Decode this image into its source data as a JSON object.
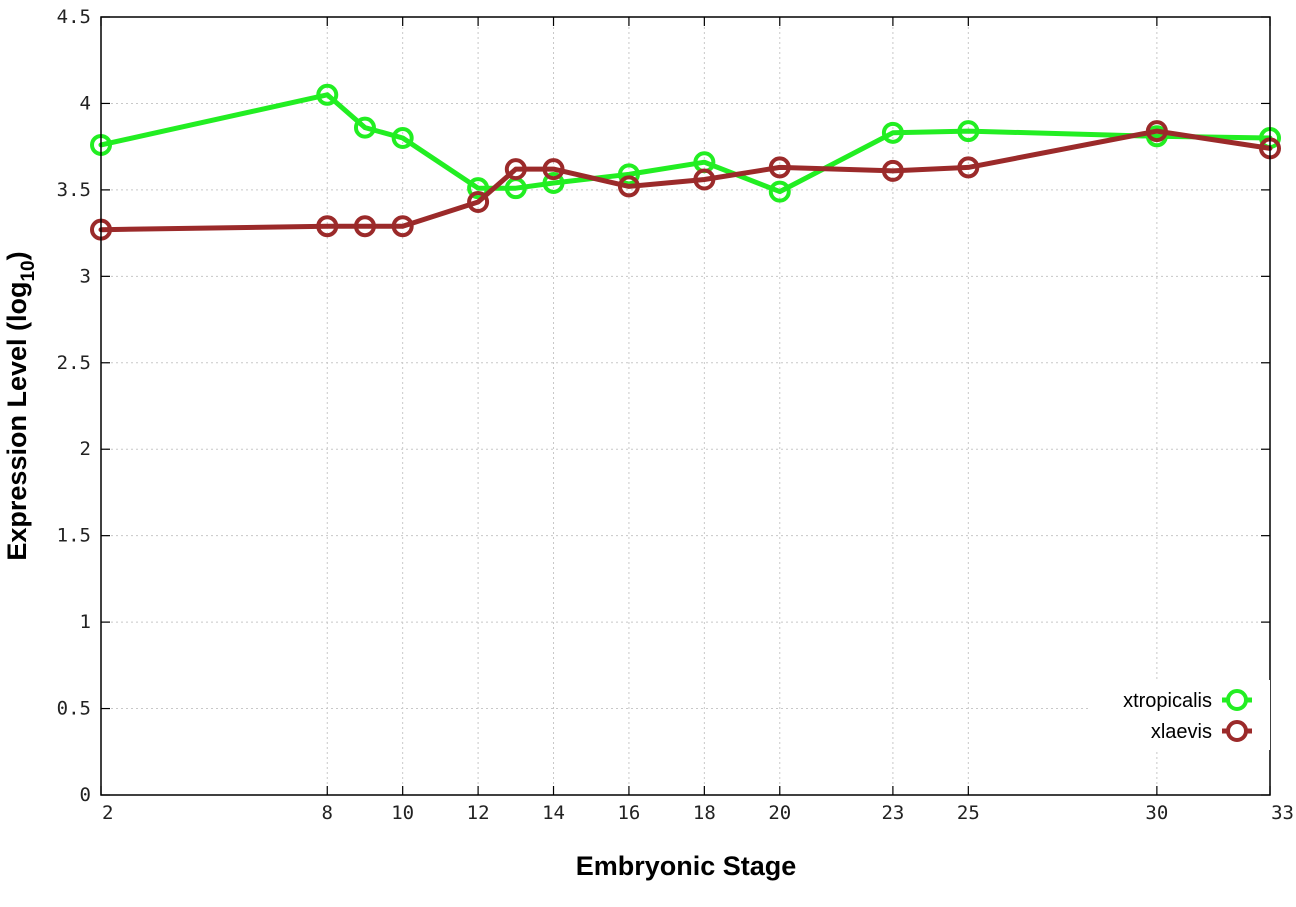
{
  "chart_data": {
    "type": "line",
    "title": "",
    "xlabel": "Embryonic Stage",
    "ylabel_main": "Expression Level (log",
    "ylabel_sub": "10",
    "ylabel_close": ")",
    "xlim": [
      2,
      33
    ],
    "ylim": [
      0,
      4.5
    ],
    "x_ticks": [
      2,
      8,
      10,
      12,
      14,
      16,
      18,
      20,
      23,
      25,
      30,
      33
    ],
    "y_ticks": [
      {
        "value": 0,
        "label": "0"
      },
      {
        "value": 0.5,
        "label": "0.5"
      },
      {
        "value": 1,
        "label": "1"
      },
      {
        "value": 1.5,
        "label": "1.5"
      },
      {
        "value": 2,
        "label": "2"
      },
      {
        "value": 2.5,
        "label": "2.5"
      },
      {
        "value": 3,
        "label": "3"
      },
      {
        "value": 3.5,
        "label": "3.5"
      },
      {
        "value": 4,
        "label": "4"
      },
      {
        "value": 4.5,
        "label": "4.5"
      }
    ],
    "grid": true,
    "legend_position": "bottom-right",
    "series": [
      {
        "name": "xtropicalis",
        "color": "#22ee22",
        "points": [
          {
            "x": 2,
            "y": 3.76
          },
          {
            "x": 8,
            "y": 4.05
          },
          {
            "x": 9,
            "y": 3.86
          },
          {
            "x": 10,
            "y": 3.8
          },
          {
            "x": 12,
            "y": 3.51
          },
          {
            "x": 13,
            "y": 3.51
          },
          {
            "x": 14,
            "y": 3.54
          },
          {
            "x": 16,
            "y": 3.59
          },
          {
            "x": 18,
            "y": 3.66
          },
          {
            "x": 20,
            "y": 3.49
          },
          {
            "x": 23,
            "y": 3.83
          },
          {
            "x": 25,
            "y": 3.84
          },
          {
            "x": 30,
            "y": 3.81
          },
          {
            "x": 33,
            "y": 3.8
          }
        ]
      },
      {
        "name": "xlaevis",
        "color": "#9b2a2a",
        "points": [
          {
            "x": 2,
            "y": 3.27
          },
          {
            "x": 8,
            "y": 3.29
          },
          {
            "x": 9,
            "y": 3.29
          },
          {
            "x": 10,
            "y": 3.29
          },
          {
            "x": 12,
            "y": 3.43
          },
          {
            "x": 13,
            "y": 3.62
          },
          {
            "x": 14,
            "y": 3.62
          },
          {
            "x": 16,
            "y": 3.52
          },
          {
            "x": 18,
            "y": 3.56
          },
          {
            "x": 20,
            "y": 3.63
          },
          {
            "x": 23,
            "y": 3.61
          },
          {
            "x": 25,
            "y": 3.63
          },
          {
            "x": 30,
            "y": 3.84
          },
          {
            "x": 33,
            "y": 3.74
          }
        ]
      }
    ]
  }
}
